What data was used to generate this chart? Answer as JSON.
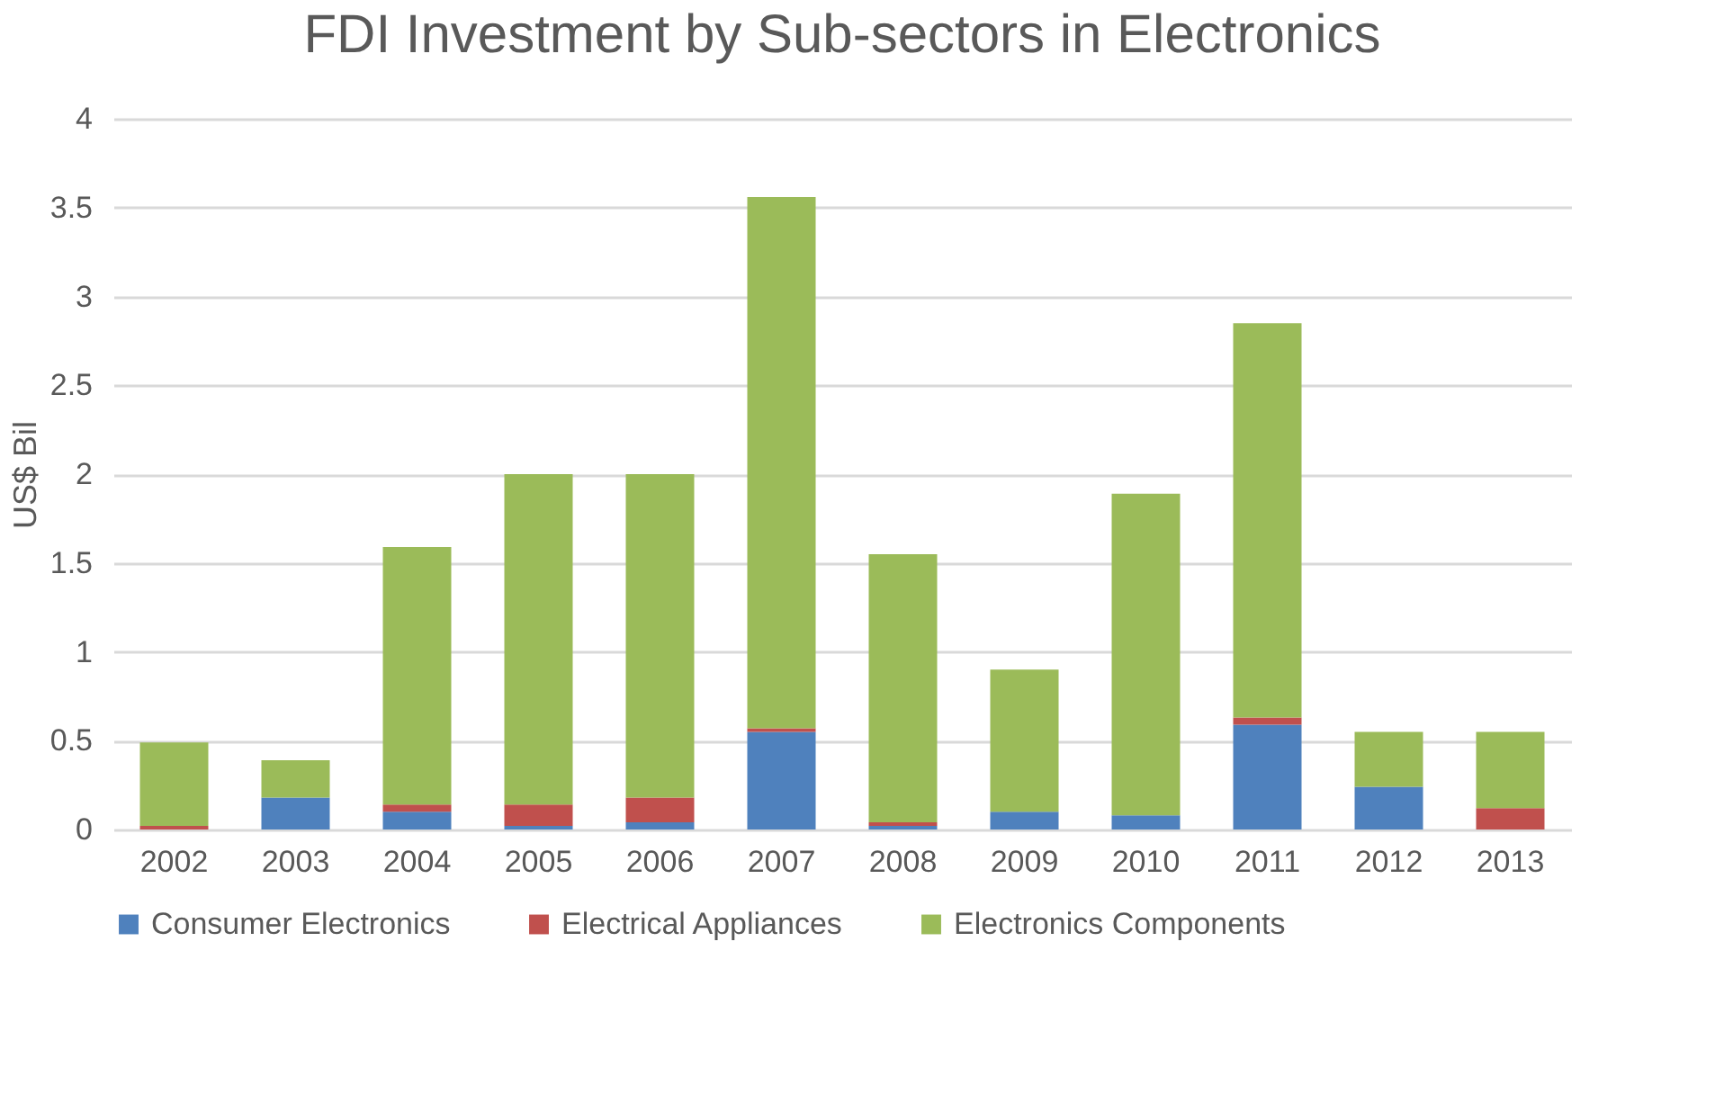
{
  "chart_data": {
    "type": "bar",
    "stacked": true,
    "title": "FDI Investment by Sub-sectors in Electronics",
    "ylabel": "US$ Bil",
    "categories": [
      "2002",
      "2003",
      "2004",
      "2005",
      "2006",
      "2007",
      "2008",
      "2009",
      "2010",
      "2011",
      "2012",
      "2013"
    ],
    "series": [
      {
        "name": "Consumer Electronics",
        "color": "#4f81bd",
        "values": [
          0,
          0.18,
          0.1,
          0.02,
          0.04,
          0.55,
          0.02,
          0.1,
          0.08,
          0.59,
          0.24,
          0
        ]
      },
      {
        "name": "Electrical Appliances",
        "color": "#c0504d",
        "values": [
          0.02,
          0,
          0.04,
          0.12,
          0.14,
          0.02,
          0.02,
          0,
          0,
          0.04,
          0,
          0.12
        ]
      },
      {
        "name": "Electronics Components",
        "color": "#9bbb59",
        "values": [
          0.47,
          0.21,
          1.45,
          1.86,
          1.82,
          2.99,
          1.51,
          0.8,
          1.81,
          2.22,
          0.31,
          0.43
        ]
      }
    ],
    "ylim": [
      0,
      4
    ],
    "yticks": [
      0,
      0.5,
      1,
      1.5,
      2,
      2.5,
      3,
      3.5,
      4
    ],
    "grid": "y",
    "legend": "bottom"
  }
}
